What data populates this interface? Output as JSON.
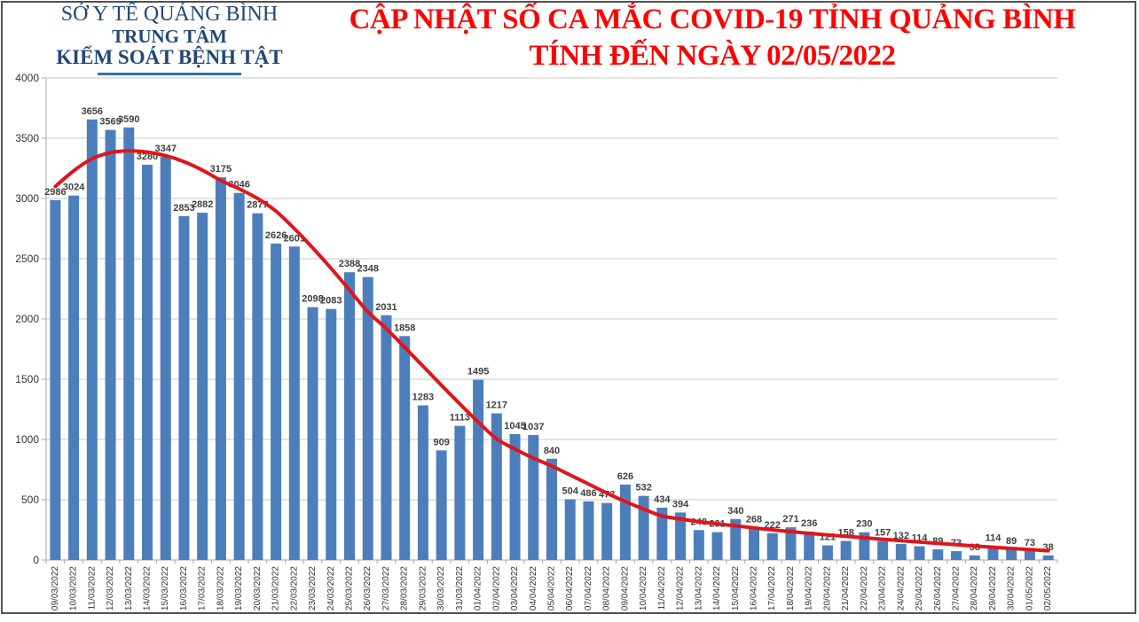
{
  "header": {
    "line1": "SỞ Y TẾ QUẢNG BÌNH",
    "line2": "TRUNG TÂM",
    "line3": "KIỂM SOÁT BỆNH TẬT"
  },
  "title": {
    "line1": "CẬP NHẬT SỐ CA MẮC COVID-19 TỈNH QUẢNG BÌNH",
    "line2": "TÍNH ĐẾN NGÀY 02/05/2022"
  },
  "chart_data": {
    "type": "bar",
    "title": "CẬP NHẬT SỐ CA MẮC COVID-19 TỈNH QUẢNG BÌNH TÍNH ĐẾN NGÀY 02/05/2022",
    "categories": [
      "09/03/2022",
      "10/03/2022",
      "11/03/2022",
      "12/03/2022",
      "13/03/2022",
      "14/03/2022",
      "15/03/2022",
      "16/03/2022",
      "17/03/2022",
      "18/03/2022",
      "19/03/2022",
      "20/03/2022",
      "21/03/2022",
      "22/03/2022",
      "23/03/2022",
      "24/03/2022",
      "25/03/2022",
      "26/03/2022",
      "27/03/2022",
      "28/03/2022",
      "29/03/2022",
      "30/03/2022",
      "31/03/2022",
      "01/04/2022",
      "02/04/2022",
      "03/04/2022",
      "04/04/2022",
      "05/04/2022",
      "06/04/2022",
      "07/04/2022",
      "08/04/2022",
      "09/04/2022",
      "10/04/2022",
      "11/04/2022",
      "12/04/2022",
      "13/04/2022",
      "14/04/2022",
      "15/04/2022",
      "16/04/2022",
      "17/04/2022",
      "18/04/2022",
      "19/04/2022",
      "20/04/2022",
      "21/04/2022",
      "22/04/2022",
      "23/04/2022",
      "24/04/2022",
      "25/04/2022",
      "26/04/2022",
      "27/04/2022",
      "28/04/2022",
      "29/04/2022",
      "30/04/2022",
      "01/05/2022",
      "02/05/2022"
    ],
    "values": [
      2986,
      3024,
      3656,
      3569,
      3590,
      3280,
      3347,
      2853,
      2882,
      3175,
      3046,
      2877,
      2626,
      2601,
      2098,
      2083,
      2388,
      2348,
      2031,
      1858,
      1283,
      909,
      1113,
      1495,
      1217,
      1045,
      1037,
      840,
      504,
      486,
      473,
      626,
      532,
      434,
      394,
      248,
      231,
      340,
      268,
      222,
      271,
      236,
      121,
      158,
      230,
      157,
      132,
      114,
      89,
      73,
      38,
      114,
      89,
      73,
      38
    ],
    "trend_series": {
      "name": "smoothed-trend",
      "values": [
        3100,
        3230,
        3330,
        3380,
        3395,
        3385,
        3355,
        3305,
        3235,
        3150,
        3080,
        3000,
        2895,
        2750,
        2590,
        2420,
        2240,
        2060,
        1920,
        1765,
        1608,
        1450,
        1295,
        1145,
        1005,
        920,
        845,
        780,
        705,
        630,
        555,
        485,
        422,
        365,
        340,
        318,
        300,
        283,
        266,
        250,
        235,
        221,
        208,
        196,
        184,
        172,
        160,
        149,
        138,
        127,
        116,
        106,
        96,
        86,
        76
      ]
    },
    "ylim": [
      0,
      4000
    ],
    "ytick_step": 500,
    "grid": true,
    "legend": "none",
    "bar_color": "#4C7EBB",
    "trend_color": "#E0151C",
    "label_color": "#3F3F3F",
    "axis_text_color": "#333333",
    "grid_color": "#C9C9C9",
    "axis_line_color": "#A6A6A6"
  },
  "colors": {
    "title_red": "#FE0000",
    "org_blue": "#1F4875",
    "underline_blue": "#2E74B5",
    "frame_gray": "#515151"
  }
}
